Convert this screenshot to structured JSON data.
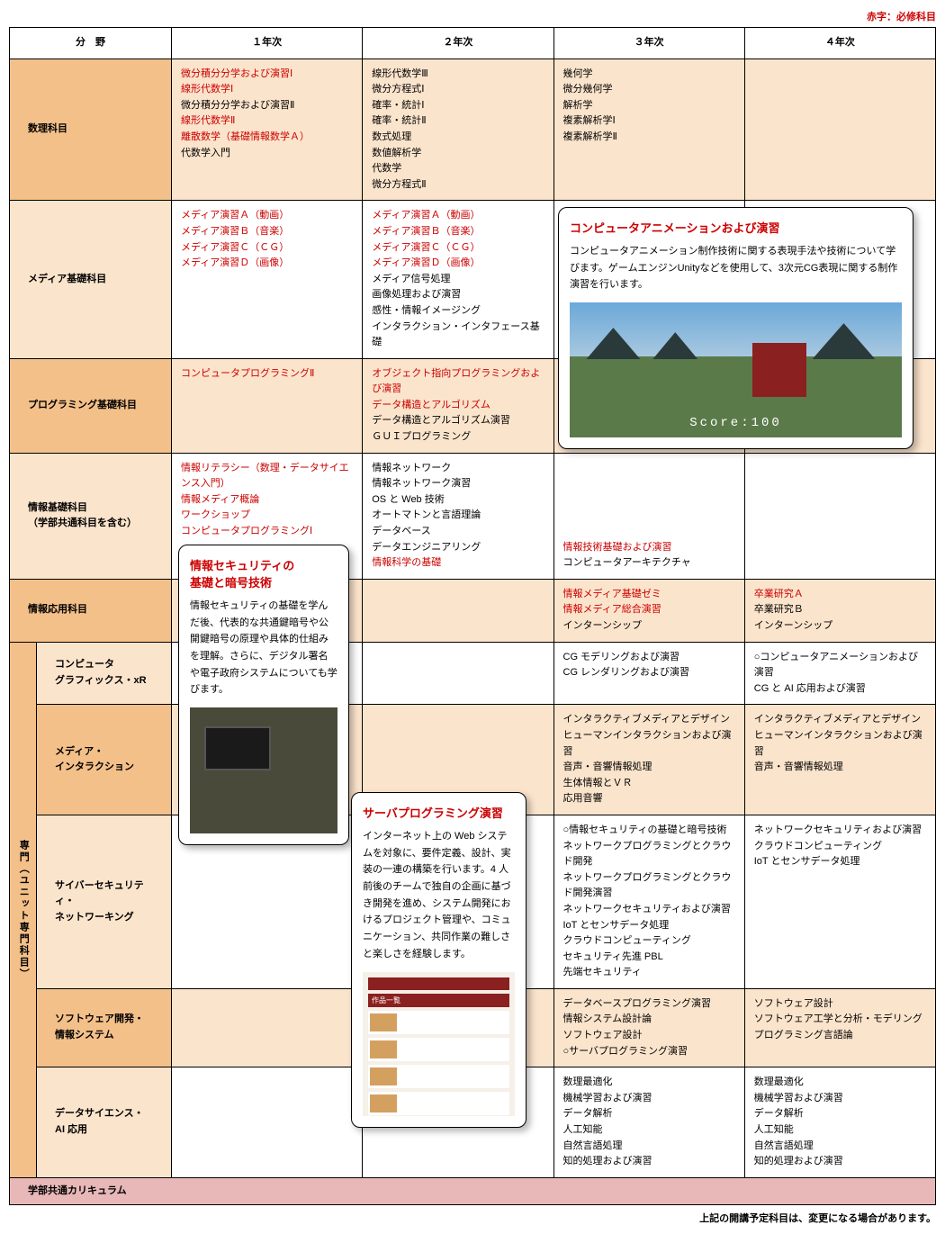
{
  "legend": "赤字：必修科目",
  "headers": {
    "field": "分　野",
    "y1": "１年次",
    "y2": "２年次",
    "y3": "３年次",
    "y4": "４年次"
  },
  "rows": {
    "math": {
      "label": "数理科目",
      "y1": [
        {
          "t": "微分積分分学および演習Ⅰ",
          "r": true
        },
        {
          "t": "線形代数学Ⅰ",
          "r": true
        },
        {
          "t": "微分積分分学および演習Ⅱ",
          "r": false
        },
        {
          "t": "線形代数学Ⅱ",
          "r": true
        },
        {
          "t": "離散数学（基礎情報数学Ａ）",
          "r": true
        },
        {
          "t": "代数学入門",
          "r": false
        }
      ],
      "y2": [
        {
          "t": "線形代数学Ⅲ",
          "r": false
        },
        {
          "t": "微分方程式Ⅰ",
          "r": false
        },
        {
          "t": "確率・統計Ⅰ",
          "r": false
        },
        {
          "t": "確率・統計Ⅱ",
          "r": false
        },
        {
          "t": "数式処理",
          "r": false
        },
        {
          "t": "数値解析学",
          "r": false
        },
        {
          "t": "代数学",
          "r": false
        },
        {
          "t": "微分方程式Ⅱ",
          "r": false
        }
      ],
      "y3": [
        {
          "t": "幾何学",
          "r": false
        },
        {
          "t": "微分幾何学",
          "r": false
        },
        {
          "t": "解析学",
          "r": false
        },
        {
          "t": "複素解析学Ⅰ",
          "r": false
        },
        {
          "t": "複素解析学Ⅱ",
          "r": false
        }
      ],
      "y4": []
    },
    "media": {
      "label": "メディア基礎科目",
      "y1": [
        {
          "t": "メディア演習Ａ（動画）",
          "r": true
        },
        {
          "t": "メディア演習Ｂ（音楽）",
          "r": true
        },
        {
          "t": "メディア演習Ｃ（ＣＧ）",
          "r": true
        },
        {
          "t": "メディア演習Ｄ（画像）",
          "r": true
        }
      ],
      "y2": [
        {
          "t": "メディア演習Ａ（動画）",
          "r": true
        },
        {
          "t": "メディア演習Ｂ（音楽）",
          "r": true
        },
        {
          "t": "メディア演習Ｃ（ＣＧ）",
          "r": true
        },
        {
          "t": "メディア演習Ｄ（画像）",
          "r": true
        },
        {
          "t": "メディア信号処理",
          "r": false
        },
        {
          "t": "画像処理および演習",
          "r": false
        },
        {
          "t": "感性・情報イメージング",
          "r": false
        },
        {
          "t": "インタラクション・インタフェース基礎",
          "r": false
        }
      ]
    },
    "prog": {
      "label": "プログラミング基礎科目",
      "y1": [
        {
          "t": "コンピュータプログラミングⅡ",
          "r": true
        }
      ],
      "y2": [
        {
          "t": "オブジェクト指向プログラミングおよび演習",
          "r": true
        },
        {
          "t": "データ構造とアルゴリズム",
          "r": true
        },
        {
          "t": "データ構造とアルゴリズム演習",
          "r": false
        },
        {
          "t": "ＧＵＩプログラミング",
          "r": false
        }
      ]
    },
    "info": {
      "label": "情報基礎科目\n（学部共通科目を含む）",
      "y1": [
        {
          "t": "情報リテラシー（数理・データサイエンス入門）",
          "r": true
        },
        {
          "t": "情報メディア概論",
          "r": true
        },
        {
          "t": "ワークショップ",
          "r": true
        },
        {
          "t": "コンピュータプログラミングⅠ",
          "r": true
        }
      ],
      "y2": [
        {
          "t": "情報ネットワーク",
          "r": false
        },
        {
          "t": "情報ネットワーク演習",
          "r": false
        },
        {
          "t": "OS と Web 技術",
          "r": false
        },
        {
          "t": "オートマトンと言語理論",
          "r": false
        },
        {
          "t": "データベース",
          "r": false
        },
        {
          "t": "データエンジニアリング",
          "r": false
        },
        {
          "t": "情報科学の基礎",
          "r": true
        }
      ],
      "y3": [
        {
          "t": "情報技術基礎および演習",
          "r": true
        },
        {
          "t": "コンピュータアーキテクチャ",
          "r": false
        }
      ]
    },
    "app": {
      "label": "情報応用科目",
      "y3": [
        {
          "t": "情報メディア基礎ゼミ",
          "r": true
        },
        {
          "t": "情報メディア総合演習",
          "r": true
        },
        {
          "t": "インターンシップ",
          "r": false
        }
      ],
      "y4": [
        {
          "t": "卒業研究Ａ",
          "r": true
        },
        {
          "t": "卒業研究Ｂ",
          "r": false
        },
        {
          "t": "インターンシップ",
          "r": false
        }
      ]
    },
    "unit_label": "専門（ユニット専門科目）",
    "cg": {
      "label": "コンピュータ\nグラフィックス・xR",
      "y3": [
        {
          "t": "CG モデリングおよび演習",
          "r": false
        },
        {
          "t": "CG レンダリングおよび演習",
          "r": false
        }
      ],
      "y4": [
        {
          "t": "コンピュータアニメーションおよび演習",
          "r": false
        },
        {
          "t": "CG と AI 応用および演習",
          "r": false
        }
      ]
    },
    "inter": {
      "label": "メディア・\nインタラクション",
      "y3": [
        {
          "t": "インタラクティブメディアとデザイン",
          "r": false
        },
        {
          "t": "ヒューマンインタラクションおよび演習",
          "r": false
        },
        {
          "t": "音声・音響情報処理",
          "r": false
        },
        {
          "t": "生体情報とＶＲ",
          "r": false
        },
        {
          "t": "応用音響",
          "r": false
        }
      ],
      "y4": [
        {
          "t": "インタラクティブメディアとデザイン",
          "r": false
        },
        {
          "t": "ヒューマンインタラクションおよび演習",
          "r": false
        },
        {
          "t": "音声・音響情報処理",
          "r": false
        }
      ]
    },
    "cyber": {
      "label": "サイバーセキュリティ・\nネットワーキング",
      "y3": [
        {
          "t": "情報セキュリティの基礎と暗号技術",
          "r": false
        },
        {
          "t": "ネットワークプログラミングとクラウド開発",
          "r": false
        },
        {
          "t": "ネットワークプログラミングとクラウド開発演習",
          "r": false
        },
        {
          "t": "ネットワークセキュリティおよび演習",
          "r": false
        },
        {
          "t": "IoT とセンサデータ処理",
          "r": false
        },
        {
          "t": "クラウドコンピューティング",
          "r": false
        },
        {
          "t": "セキュリティ先進 PBL",
          "r": false
        },
        {
          "t": "先端セキュリティ",
          "r": false
        }
      ],
      "y4": [
        {
          "t": "ネットワークセキュリティおよび演習",
          "r": false
        },
        {
          "t": "クラウドコンピューティング",
          "r": false
        },
        {
          "t": "IoT とセンサデータ処理",
          "r": false
        }
      ]
    },
    "soft": {
      "label": "ソフトウェア開発・\n情報システム",
      "y3": [
        {
          "t": "データベースプログラミング演習",
          "r": false
        },
        {
          "t": "情報システム設計論",
          "r": false
        },
        {
          "t": "ソフトウェア設計",
          "r": false
        },
        {
          "t": "サーバプログラミング演習",
          "r": false
        }
      ],
      "y4": [
        {
          "t": "ソフトウェア設計",
          "r": false
        },
        {
          "t": "ソフトウェア工学と分析・モデリング",
          "r": false
        },
        {
          "t": "プログラミング言語論",
          "r": false
        }
      ]
    },
    "ds": {
      "label": "データサイエンス・\nAI 応用",
      "y3": [
        {
          "t": "数理最適化",
          "r": false
        },
        {
          "t": "機械学習および演習",
          "r": false
        },
        {
          "t": "データ解析",
          "r": false
        },
        {
          "t": "人工知能",
          "r": false
        },
        {
          "t": "自然言語処理",
          "r": false
        },
        {
          "t": "知的処理および演習",
          "r": false
        }
      ],
      "y4": [
        {
          "t": "数理最適化",
          "r": false
        },
        {
          "t": "機械学習および演習",
          "r": false
        },
        {
          "t": "データ解析",
          "r": false
        },
        {
          "t": "人工知能",
          "r": false
        },
        {
          "t": "自然言語処理",
          "r": false
        },
        {
          "t": "知的処理および演習",
          "r": false
        }
      ]
    }
  },
  "footer_row": "学部共通カリキュラム",
  "note": "上記の開講予定科目は、変更になる場合があります。",
  "callouts": {
    "anim": {
      "title": "コンピュータアニメーションおよび演習",
      "body": "コンピュータアニメーション制作技術に関する表現手法や技術について学びます。ゲームエンジンUnityなどを使用して、3次元CG表現に関する制作演習を行います。",
      "score": "Score:100"
    },
    "sec": {
      "title": "情報セキュリティの\n基礎と暗号技術",
      "body": "情報セキュリティの基礎を学んだ後、代表的な共通鍵暗号や公開鍵暗号の原理や具体的仕組みを理解。さらに、デジタル署名や電子政府システムについても学びます。"
    },
    "srv": {
      "title": "サーバプログラミング演習",
      "body": "インターネット上の Web システムを対象に、要件定義、設計、実装の一連の構築を行います。4 人前後のチームで独自の企画に基づき開発を進め、システム開発におけるプロジェクト管理や、コミュニケーション、共同作業の難しさと楽しさを経験します。"
    }
  },
  "colors": {
    "required": "#cc0000",
    "cat_dark": "#f4c089",
    "cat_light": "#fbe4cc",
    "footer": "#e8b8b8",
    "border": "#000000"
  }
}
